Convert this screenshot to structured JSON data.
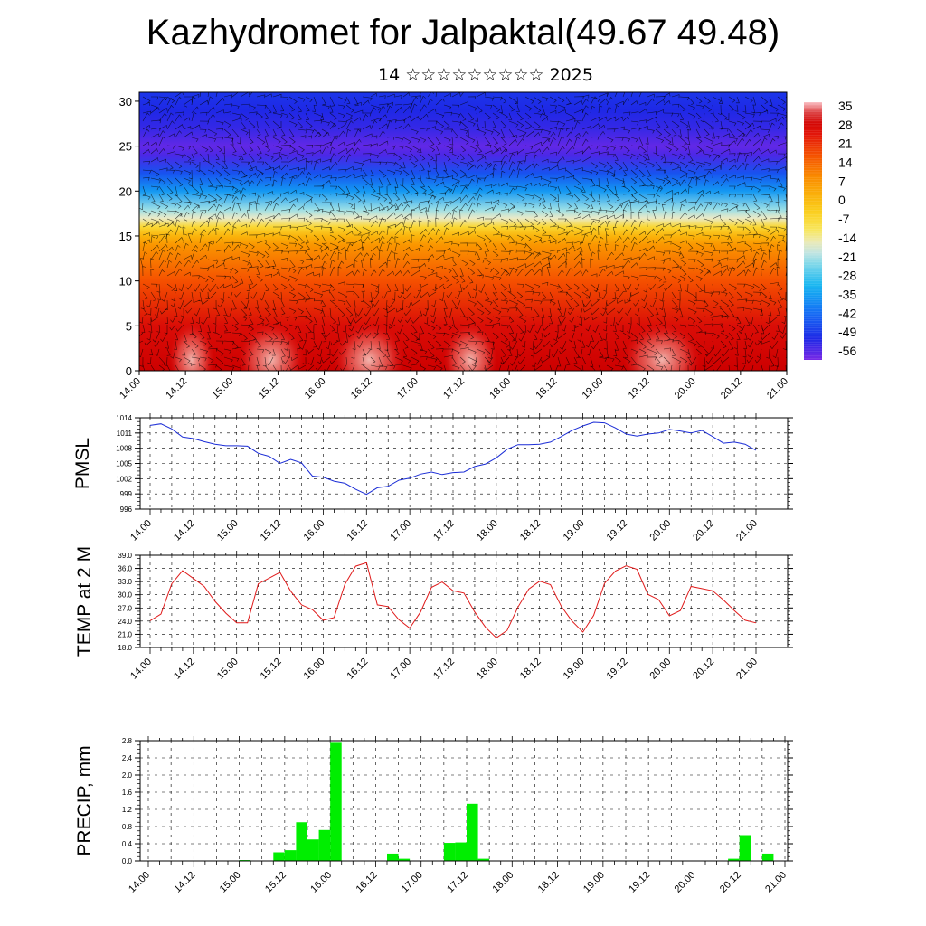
{
  "header": {
    "title": "Kazhydromet for Jalpaktal(49.67 49.48)",
    "subtitle": "14 ☆☆☆☆☆☆☆☆☆ 2025"
  },
  "colors": {
    "pmsl_line": "#1a2cd6",
    "temp_line": "#e01a1a",
    "precip_bar": "#00ee00",
    "grid": "#000000"
  },
  "chart_data": [
    {
      "id": "height-section",
      "type": "heatmap",
      "x_tick_labels": [
        "14.00",
        "14.12",
        "15.00",
        "15.12",
        "16.00",
        "16.12",
        "17.00",
        "17.12",
        "18.00",
        "18.12",
        "19.00",
        "19.12",
        "20.00",
        "20.12",
        "21.00"
      ],
      "y_tick_labels": [
        "0",
        "5",
        "10",
        "15",
        "20",
        "25",
        "30"
      ],
      "ylim": [
        0,
        31
      ],
      "colorbar_labels": [
        "35",
        "28",
        "21",
        "14",
        "7",
        "0",
        "-7",
        "-14",
        "-21",
        "-28",
        "-35",
        "-42",
        "-49",
        "-56"
      ],
      "colorbar_range": [
        -60,
        38
      ],
      "levels": [
        0,
        5,
        10,
        14,
        15,
        16,
        17,
        18,
        20,
        22,
        24,
        25,
        27,
        29,
        31
      ],
      "values": [
        32,
        28,
        18,
        8,
        2,
        -6,
        -16,
        -22,
        -36,
        -46,
        -56,
        -58,
        -54,
        -52,
        -50
      ],
      "overlay": "wind barbs"
    },
    {
      "id": "pmsl",
      "type": "line",
      "ylabel": "PMSL",
      "y_ticks": [
        996,
        999,
        1002,
        1005,
        1008,
        1011,
        1014
      ],
      "ylim": [
        996,
        1014
      ],
      "x_tick_labels": [
        "14.00",
        "14.12",
        "15.00",
        "15.12",
        "16.00",
        "16.12",
        "17.00",
        "17.12",
        "18.00",
        "18.12",
        "19.00",
        "19.12",
        "20.00",
        "20.12",
        "21.00"
      ],
      "step_hours": 3,
      "values": [
        1012.5,
        1012.8,
        1011.8,
        1010.2,
        1009.9,
        1009.3,
        1008.8,
        1008.5,
        1008.5,
        1008.4,
        1007.0,
        1006.4,
        1005.0,
        1005.8,
        1005.1,
        1002.5,
        1002.3,
        1001.5,
        1001.1,
        999.9,
        998.9,
        1000.2,
        1000.5,
        1001.7,
        1002.1,
        1002.9,
        1003.3,
        1002.8,
        1003.2,
        1003.3,
        1004.4,
        1004.9,
        1006.1,
        1007.8,
        1008.7,
        1008.7,
        1008.8,
        1009.2,
        1010.3,
        1011.5,
        1012.4,
        1013.1,
        1013.0,
        1012.0,
        1010.8,
        1010.4,
        1010.8,
        1011.0,
        1011.7,
        1011.4,
        1011.0,
        1011.5,
        1010.3,
        1009.0,
        1009.2,
        1008.8,
        1007.6
      ]
    },
    {
      "id": "temp2m",
      "type": "line",
      "ylabel": "TEMP at 2 M",
      "y_ticks": [
        "18.0",
        "21.0",
        "24.0",
        "27.0",
        "30.0",
        "33.0",
        "36.0",
        "39.0"
      ],
      "ylim": [
        18,
        39
      ],
      "x_tick_labels": [
        "14.00",
        "14.12",
        "15.00",
        "15.12",
        "16.00",
        "16.12",
        "17.00",
        "17.12",
        "18.00",
        "18.12",
        "19.00",
        "19.12",
        "20.00",
        "20.12",
        "21.00"
      ],
      "step_hours": 3,
      "values": [
        24.1,
        25.6,
        32.5,
        35.5,
        33.7,
        31.9,
        28.5,
        25.8,
        23.6,
        23.6,
        32.5,
        33.8,
        35.1,
        30.8,
        27.7,
        26.6,
        24.2,
        24.8,
        32.4,
        36.5,
        37.3,
        27.7,
        27.3,
        24.3,
        22.4,
        26.1,
        31.7,
        32.9,
        30.9,
        30.4,
        26.1,
        22.6,
        20.2,
        21.9,
        27.2,
        31.3,
        33.1,
        32.3,
        27.4,
        24.0,
        21.5,
        25.3,
        32.6,
        35.4,
        36.6,
        35.8,
        30.1,
        28.9,
        25.2,
        26.4,
        31.9,
        31.4,
        30.9,
        28.8,
        26.4,
        24.2,
        23.6
      ]
    },
    {
      "id": "precip",
      "type": "bar",
      "ylabel": "PRECIP, mm",
      "y_ticks": [
        "0.0",
        "0.4",
        "0.8",
        "1.2",
        "1.6",
        "2.0",
        "2.4",
        "2.8"
      ],
      "ylim": [
        0,
        2.8
      ],
      "x_tick_labels": [
        "14.00",
        "14.12",
        "15.00",
        "15.12",
        "16.00",
        "16.12",
        "17.00",
        "17.12",
        "18.00",
        "18.12",
        "19.00",
        "19.12",
        "20.00",
        "20.12",
        "21.00"
      ],
      "step_hours": 3,
      "values": [
        0,
        0,
        0,
        0,
        0,
        0,
        0,
        0,
        0.02,
        0,
        0,
        0.2,
        0.25,
        0.9,
        0.5,
        0.72,
        2.75,
        0,
        0,
        0,
        0,
        0.17,
        0.05,
        0,
        0,
        0,
        0.42,
        0.43,
        1.33,
        0.05,
        0,
        0,
        0,
        0,
        0,
        0,
        0,
        0,
        0,
        0,
        0,
        0,
        0,
        0,
        0,
        0,
        0,
        0,
        0,
        0,
        0,
        0.05,
        0.6,
        0,
        0.17,
        0
      ]
    }
  ]
}
